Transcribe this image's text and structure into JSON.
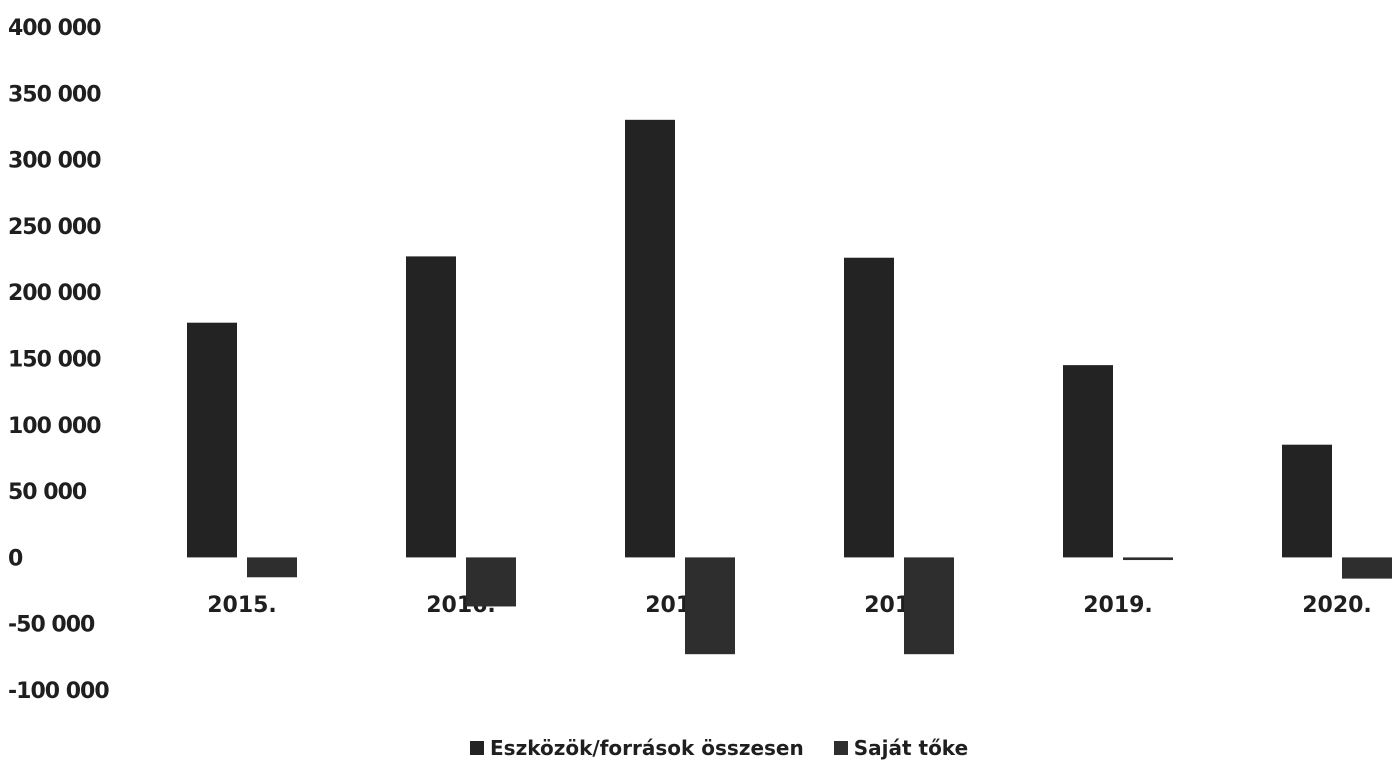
{
  "chart_data": {
    "type": "bar",
    "categories": [
      "2015.",
      "2016.",
      "2017.",
      "2018.",
      "2019.",
      "2020."
    ],
    "series": [
      {
        "name": "Eszközök/források összesen",
        "color": "#232323",
        "values": [
          177000,
          227000,
          330000,
          226000,
          145000,
          85000
        ]
      },
      {
        "name": "Saját tőke",
        "color": "#2e2e2e",
        "values": [
          -15000,
          -37000,
          -73000,
          -73000,
          -2000,
          -16000
        ]
      }
    ],
    "ylim": [
      -100000,
      400000
    ],
    "yticks": [
      "400 000",
      "350 000",
      "300 000",
      "250 000",
      "200 000",
      "150 000",
      "100 000",
      "50 000",
      "0",
      "-50 000",
      "-100 000"
    ],
    "ytick_values": [
      400000,
      350000,
      300000,
      250000,
      200000,
      150000,
      100000,
      50000,
      0,
      -50000,
      -100000
    ],
    "grid": false,
    "legend_position": "bottom",
    "title": "",
    "xlabel": "",
    "ylabel": ""
  }
}
